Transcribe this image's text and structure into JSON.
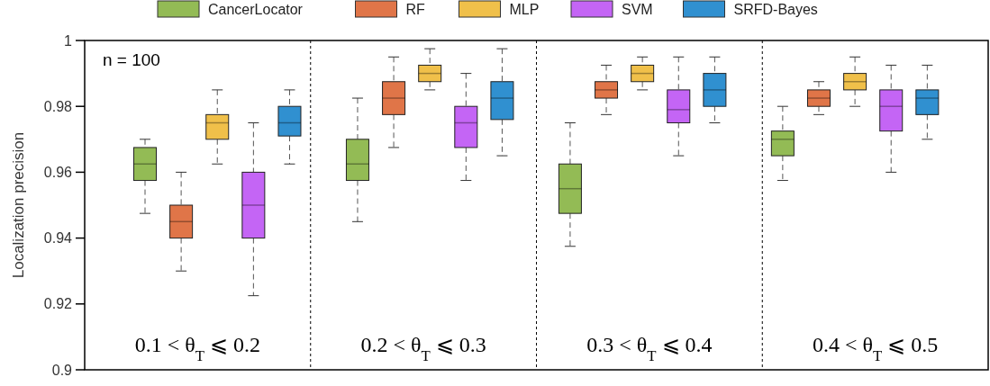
{
  "chart_data": {
    "type": "box",
    "ylabel": "Localization precision",
    "categories": [
      "0.1 < θ$_{T}$ ⩽ 0.2",
      "0.2 < θ$_{T}$ ⩽ 0.3",
      "0.3 < θ$_{T}$ ⩽ 0.4",
      "0.4 < θ$_{T}$ ⩽ 0.5"
    ],
    "ylim": [
      0.9,
      1
    ],
    "yticks": [
      0.9,
      0.92,
      0.94,
      0.96,
      0.98,
      1
    ],
    "grid": "x",
    "legend": "top",
    "annotations": [
      "n = 100"
    ],
    "series": [
      {
        "name": "CancerLocator",
        "color": "#93bb55",
        "boxes": [
          {
            "low": 0.9475,
            "q1": 0.9575,
            "median": 0.9625,
            "q3": 0.9675,
            "high": 0.97
          },
          {
            "low": 0.945,
            "q1": 0.9575,
            "median": 0.9625,
            "q3": 0.97,
            "high": 0.9825
          },
          {
            "low": 0.9375,
            "q1": 0.9475,
            "median": 0.955,
            "q3": 0.9625,
            "high": 0.975
          },
          {
            "low": 0.9575,
            "q1": 0.965,
            "median": 0.97,
            "q3": 0.9725,
            "high": 0.98
          }
        ]
      },
      {
        "name": "RF",
        "color": "#e07548",
        "boxes": [
          {
            "low": 0.93,
            "q1": 0.94,
            "median": 0.945,
            "q3": 0.95,
            "high": 0.96
          },
          {
            "low": 0.9675,
            "q1": 0.9775,
            "median": 0.9825,
            "q3": 0.9875,
            "high": 0.995
          },
          {
            "low": 0.9775,
            "q1": 0.9825,
            "median": 0.985,
            "q3": 0.9875,
            "high": 0.9925
          },
          {
            "low": 0.9775,
            "q1": 0.98,
            "median": 0.9825,
            "q3": 0.985,
            "high": 0.9875
          }
        ]
      },
      {
        "name": "MLP",
        "color": "#f0c04a",
        "boxes": [
          {
            "low": 0.9625,
            "q1": 0.97,
            "median": 0.975,
            "q3": 0.9775,
            "high": 0.985
          },
          {
            "low": 0.985,
            "q1": 0.9875,
            "median": 0.99,
            "q3": 0.9925,
            "high": 0.9975
          },
          {
            "low": 0.985,
            "q1": 0.9875,
            "median": 0.99,
            "q3": 0.9925,
            "high": 0.995
          },
          {
            "low": 0.98,
            "q1": 0.985,
            "median": 0.9875,
            "q3": 0.99,
            "high": 0.995
          }
        ]
      },
      {
        "name": "SVM",
        "color": "#c465f5",
        "boxes": [
          {
            "low": 0.9225,
            "q1": 0.94,
            "median": 0.95,
            "q3": 0.96,
            "high": 0.975
          },
          {
            "low": 0.9575,
            "q1": 0.9675,
            "median": 0.975,
            "q3": 0.98,
            "high": 0.99
          },
          {
            "low": 0.965,
            "q1": 0.975,
            "median": 0.979,
            "q3": 0.985,
            "high": 0.995
          },
          {
            "low": 0.96,
            "q1": 0.9725,
            "median": 0.98,
            "q3": 0.985,
            "high": 0.9925
          }
        ]
      },
      {
        "name": "SRFD-Bayes",
        "color": "#3090d0",
        "boxes": [
          {
            "low": 0.9625,
            "q1": 0.971,
            "median": 0.975,
            "q3": 0.98,
            "high": 0.985
          },
          {
            "low": 0.965,
            "q1": 0.976,
            "median": 0.9825,
            "q3": 0.9875,
            "high": 0.9975
          },
          {
            "low": 0.975,
            "q1": 0.98,
            "median": 0.985,
            "q3": 0.99,
            "high": 0.995
          },
          {
            "low": 0.97,
            "q1": 0.9775,
            "median": 0.9825,
            "q3": 0.985,
            "high": 0.9925
          }
        ]
      }
    ]
  }
}
